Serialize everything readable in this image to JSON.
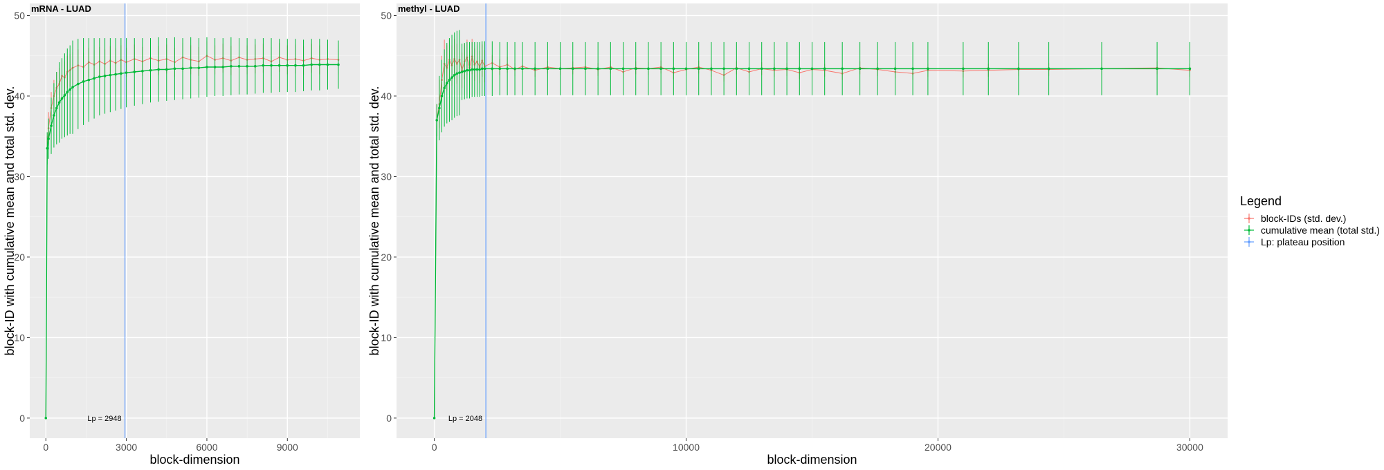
{
  "legend": {
    "title": "Legend",
    "items": [
      {
        "label": "block-IDs (std. dev.)",
        "color": "#F8766D"
      },
      {
        "label": "cumulative mean (total std.)",
        "color": "#00BA38"
      },
      {
        "label": "Lp: plateau position",
        "color": "#619CFF"
      }
    ]
  },
  "chart_data": [
    {
      "type": "line",
      "title": "mRNA - LUAD",
      "xlabel": "block-dimension",
      "ylabel": "block-ID with cumulative mean and total std. dev.",
      "xlim": [
        -600,
        11700
      ],
      "ylim": [
        -2.5,
        51.5
      ],
      "x_ticks": [
        0,
        3000,
        6000,
        9000
      ],
      "x_tick_labels": [
        "0",
        "3000",
        "6000",
        "9000"
      ],
      "y_ticks": [
        0,
        10,
        20,
        30,
        40,
        50
      ],
      "y_tick_labels": [
        "0",
        "10",
        "20",
        "30",
        "40",
        "50"
      ],
      "grid": true,
      "vline": {
        "x": 2948,
        "label": "Lp = 2948"
      },
      "series": [
        {
          "name": "block-IDs (std. dev.)",
          "color": "#F8766D",
          "x": [
            0,
            50,
            100,
            200,
            300,
            400,
            500,
            600,
            700,
            800,
            900,
            1000,
            1200,
            1400,
            1600,
            1800,
            2000,
            2200,
            2400,
            2600,
            2800,
            3000,
            3300,
            3600,
            3900,
            4200,
            4500,
            4800,
            5100,
            5400,
            5700,
            6000,
            6300,
            6600,
            6900,
            7200,
            7500,
            7800,
            8100,
            8400,
            8700,
            9000,
            9300,
            9600,
            9900,
            10200,
            10500,
            10900
          ],
          "values": [
            0,
            33.5,
            36,
            38.5,
            40,
            41,
            41.5,
            42.5,
            42.3,
            43,
            43.2,
            43.5,
            43.8,
            43.6,
            44.2,
            43.9,
            44.3,
            44,
            44.4,
            44.1,
            44.5,
            44.2,
            44.6,
            44.3,
            44.7,
            44.4,
            44.6,
            44.2,
            44.8,
            44.5,
            44.3,
            45,
            44.5,
            44.7,
            44.4,
            44.8,
            44.5,
            44.6,
            44.7,
            44.3,
            44.8,
            44.5,
            44.6,
            44.4,
            44.7,
            44.5,
            44.6,
            44.5
          ],
          "err": [
            0,
            1.5,
            2,
            2,
            2,
            2,
            2,
            2,
            2,
            2,
            2,
            2,
            2,
            1.8,
            1.8,
            1.8,
            1.8,
            1.8,
            1.8,
            1.8,
            1.8,
            1.8,
            1.8,
            1.8,
            1.8,
            1.8,
            1.8,
            1.8,
            1.8,
            1.8,
            1.8,
            1.8,
            1.8,
            1.8,
            1.8,
            1.8,
            1.8,
            1.8,
            1.8,
            1.8,
            1.8,
            1.8,
            1.8,
            1.8,
            1.8,
            1.8,
            1.8,
            1.8
          ]
        },
        {
          "name": "cumulative mean (total std.)",
          "color": "#00BA38",
          "x": [
            0,
            50,
            100,
            200,
            300,
            400,
            500,
            600,
            700,
            800,
            900,
            1000,
            1200,
            1400,
            1600,
            1800,
            2000,
            2200,
            2400,
            2600,
            2800,
            3000,
            3300,
            3600,
            3900,
            4200,
            4500,
            4800,
            5100,
            5400,
            5700,
            6000,
            6300,
            6600,
            6900,
            7200,
            7500,
            7800,
            8100,
            8400,
            8700,
            9000,
            9300,
            9600,
            9900,
            10200,
            10500,
            10900
          ],
          "values": [
            0,
            33.5,
            34.7,
            36.3,
            37.6,
            38.5,
            39.2,
            39.7,
            40.1,
            40.5,
            40.8,
            41.1,
            41.5,
            41.8,
            42.0,
            42.2,
            42.4,
            42.5,
            42.6,
            42.7,
            42.8,
            42.9,
            43.0,
            43.1,
            43.2,
            43.3,
            43.3,
            43.4,
            43.4,
            43.5,
            43.5,
            43.6,
            43.6,
            43.6,
            43.7,
            43.7,
            43.7,
            43.7,
            43.8,
            43.8,
            43.8,
            43.8,
            43.8,
            43.8,
            43.9,
            43.9,
            43.9,
            43.9
          ],
          "err": [
            0,
            2,
            2.5,
            3.5,
            4,
            4.5,
            5,
            5,
            5.2,
            5.4,
            5.5,
            5.8,
            5.6,
            5.4,
            5.2,
            5.0,
            4.8,
            4.7,
            4.6,
            4.5,
            4.4,
            4.3,
            4.2,
            4.1,
            4.0,
            4.0,
            3.9,
            3.9,
            3.8,
            3.8,
            3.7,
            3.7,
            3.6,
            3.6,
            3.6,
            3.5,
            3.5,
            3.4,
            3.4,
            3.4,
            3.3,
            3.3,
            3.3,
            3.2,
            3.2,
            3.2,
            3.1,
            3.0
          ]
        }
      ]
    },
    {
      "type": "line",
      "title": "methyl - LUAD",
      "xlabel": "block-dimension",
      "ylabel": "block-ID with cumulative mean and total std. dev.",
      "xlim": [
        -1500,
        31500
      ],
      "ylim": [
        -2.5,
        51.5
      ],
      "x_ticks": [
        0,
        10000,
        20000,
        30000
      ],
      "x_tick_labels": [
        "0",
        "10000",
        "20000",
        "30000"
      ],
      "y_ticks": [
        0,
        10,
        20,
        30,
        40,
        50
      ],
      "y_tick_labels": [
        "0",
        "10",
        "20",
        "30",
        "40",
        "50"
      ],
      "grid": true,
      "vline": {
        "x": 2048,
        "label": "Lp = 2048"
      },
      "series": [
        {
          "name": "block-IDs (std. dev.)",
          "color": "#F8766D",
          "x": [
            0,
            100,
            200,
            300,
            400,
            500,
            600,
            700,
            800,
            900,
            1000,
            1100,
            1200,
            1300,
            1400,
            1500,
            1600,
            1700,
            1800,
            1900,
            2000,
            2300,
            2600,
            2900,
            3200,
            3500,
            4000,
            4500,
            5000,
            5500,
            6000,
            6500,
            7000,
            7500,
            8000,
            8500,
            9000,
            9500,
            10000,
            10500,
            11000,
            11500,
            12000,
            12500,
            13000,
            13500,
            14000,
            14500,
            15000,
            15500,
            16200,
            16900,
            17600,
            18300,
            19000,
            19600,
            21000,
            22000,
            23200,
            24400,
            26500,
            28700,
            30000
          ],
          "values": [
            0,
            37,
            39,
            42,
            44,
            43.5,
            44.5,
            43.8,
            44.6,
            44,
            44.5,
            43.2,
            44.3,
            44.8,
            43.5,
            44.9,
            43.9,
            44.3,
            43.6,
            44.4,
            43.7,
            44.1,
            43.6,
            43.9,
            43.3,
            43.7,
            43.2,
            43.6,
            43.4,
            43.5,
            43.6,
            43.3,
            43.6,
            43.0,
            43.5,
            43.4,
            43.6,
            42.9,
            43.3,
            43.6,
            43.2,
            42.6,
            43.5,
            43.0,
            43.4,
            43.2,
            43.3,
            42.9,
            43.3,
            43.2,
            42.8,
            43.5,
            43.3,
            43.0,
            42.8,
            43.2,
            43.1,
            43.2,
            43.3,
            43.3,
            43.4,
            43.5,
            43.2
          ],
          "err": [
            0,
            2,
            3,
            3,
            3,
            2.8,
            2.5,
            2.5,
            2.5,
            2.5,
            2.5,
            2.2,
            2.2,
            2.2,
            2.2,
            2.2,
            2.0,
            2.0,
            2.0,
            2.0,
            2.0,
            1.0,
            1.0,
            1.0,
            0.8,
            0.8,
            0.8,
            0.8,
            0.8,
            0.8,
            0.8,
            0.8,
            0.8,
            0.8,
            0.8,
            0.8,
            0.8,
            0.8,
            0.8,
            0.8,
            0.8,
            0.8,
            0.8,
            0.8,
            0.8,
            0.8,
            0.8,
            0.8,
            0.8,
            0.8,
            0.8,
            0.8,
            0.8,
            0.8,
            0.8,
            0.8,
            0.8,
            0.8,
            0.8,
            0.8,
            0.8,
            0.8,
            0.8
          ]
        },
        {
          "name": "cumulative mean (total std.)",
          "color": "#00BA38",
          "x": [
            0,
            100,
            200,
            300,
            400,
            500,
            600,
            700,
            800,
            900,
            1000,
            1100,
            1200,
            1300,
            1400,
            1500,
            1600,
            1700,
            1800,
            1900,
            2000,
            2300,
            2600,
            2900,
            3200,
            3500,
            4000,
            4500,
            5000,
            5500,
            6000,
            6500,
            7000,
            7500,
            8000,
            8500,
            9000,
            9500,
            10000,
            10500,
            11000,
            11500,
            12000,
            12500,
            13000,
            13500,
            14000,
            14500,
            15000,
            15500,
            16200,
            16900,
            17600,
            18300,
            19000,
            19600,
            21000,
            22000,
            23200,
            24400,
            26500,
            28700,
            30000
          ],
          "values": [
            0,
            37,
            38.5,
            40,
            41,
            41.6,
            42,
            42.3,
            42.6,
            42.8,
            42.9,
            43,
            43.1,
            43.2,
            43.2,
            43.3,
            43.3,
            43.3,
            43.3,
            43.4,
            43.4,
            43.4,
            43.4,
            43.4,
            43.4,
            43.4,
            43.4,
            43.4,
            43.4,
            43.4,
            43.4,
            43.4,
            43.4,
            43.4,
            43.4,
            43.4,
            43.4,
            43.4,
            43.4,
            43.4,
            43.4,
            43.4,
            43.4,
            43.4,
            43.4,
            43.4,
            43.4,
            43.4,
            43.4,
            43.4,
            43.4,
            43.4,
            43.4,
            43.4,
            43.4,
            43.4,
            43.4,
            43.4,
            43.4,
            43.4,
            43.4,
            43.4,
            43.4
          ],
          "err": [
            0,
            2,
            4,
            4.5,
            4.8,
            5,
            5.2,
            5.3,
            5.3,
            5.3,
            5.3,
            3.5,
            3.5,
            3.5,
            3.5,
            3.4,
            3.4,
            3.4,
            3.4,
            3.4,
            3.4,
            3.4,
            3.3,
            3.3,
            3.3,
            3.3,
            3.3,
            3.3,
            3.3,
            3.3,
            3.3,
            3.3,
            3.3,
            3.3,
            3.3,
            3.3,
            3.3,
            3.3,
            3.3,
            3.3,
            3.3,
            3.3,
            3.3,
            3.3,
            3.3,
            3.3,
            3.3,
            3.3,
            3.3,
            3.3,
            3.3,
            3.3,
            3.3,
            3.3,
            3.3,
            3.3,
            3.3,
            3.3,
            3.3,
            3.3,
            3.3,
            3.3,
            3.3
          ]
        }
      ]
    }
  ]
}
